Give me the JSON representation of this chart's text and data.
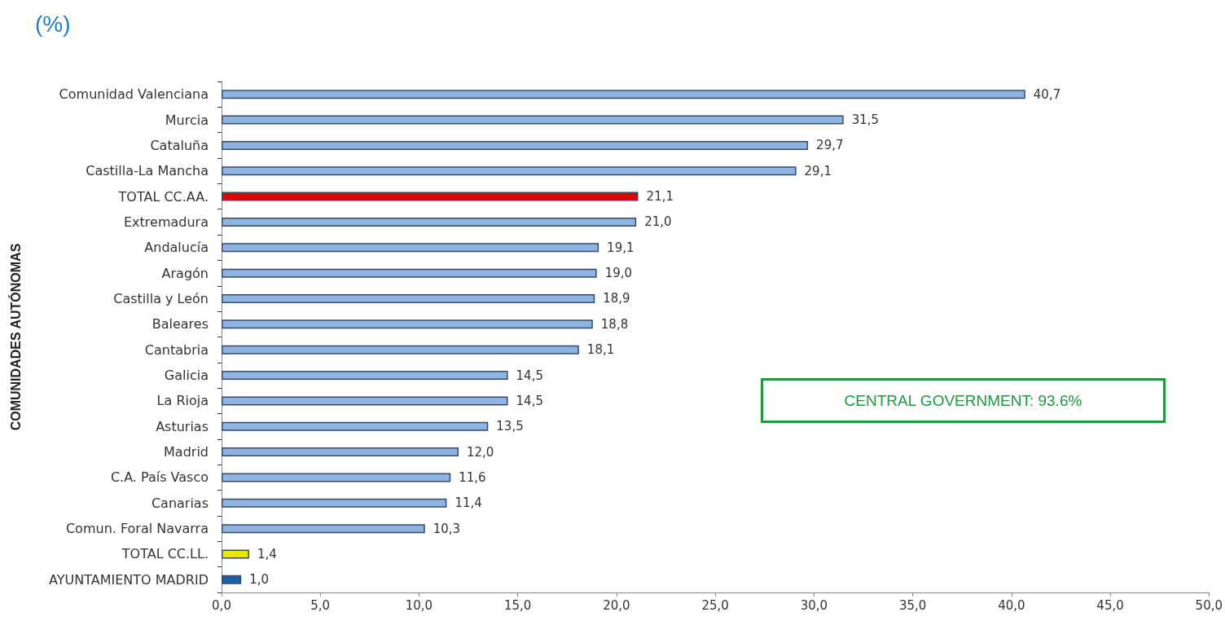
{
  "chart_data": {
    "type": "bar",
    "orientation": "horizontal",
    "title": "(%)",
    "ylabel": "COMUNIDADES AUTÓNOMAS",
    "categories": [
      "Comunidad Valenciana",
      "Murcia",
      "Cataluña",
      "Castilla-La Mancha",
      "TOTAL CC.AA.",
      "Extremadura",
      "Andalucía",
      "Aragón",
      "Castilla y León",
      "Baleares",
      "Cantabria",
      "Galicia",
      "La Rioja",
      "Asturias",
      "Madrid",
      "C.A. País Vasco",
      "Canarias",
      "Comun. Foral Navarra",
      "TOTAL CC.LL.",
      "AYUNTAMIENTO MADRID"
    ],
    "values": [
      40.7,
      31.5,
      29.7,
      29.1,
      21.1,
      21.0,
      19.1,
      19.0,
      18.9,
      18.8,
      18.1,
      14.5,
      14.5,
      13.5,
      12.0,
      11.6,
      11.4,
      10.3,
      1.4,
      1.0
    ],
    "value_labels": [
      "40,7",
      "31,5",
      "29,7",
      "29,1",
      "21,1",
      "21,0",
      "19,1",
      "19,0",
      "18,9",
      "18,8",
      "18,1",
      "14,5",
      "14,5",
      "13,5",
      "12,0",
      "11,6",
      "11,4",
      "10,3",
      "1,4",
      "1,0"
    ],
    "colors": [
      "#8db4e2",
      "#8db4e2",
      "#8db4e2",
      "#8db4e2",
      "#e00000",
      "#8db4e2",
      "#8db4e2",
      "#8db4e2",
      "#8db4e2",
      "#8db4e2",
      "#8db4e2",
      "#8db4e2",
      "#8db4e2",
      "#8db4e2",
      "#8db4e2",
      "#8db4e2",
      "#8db4e2",
      "#8db4e2",
      "#e8e800",
      "#1f5fa8"
    ],
    "xlim": [
      0,
      50
    ],
    "xticks": [
      {
        "value": 0,
        "label": "0,0"
      },
      {
        "value": 5,
        "label": "5,0"
      },
      {
        "value": 10,
        "label": "10,0"
      },
      {
        "value": 15,
        "label": "15,0"
      },
      {
        "value": 20,
        "label": "20,0"
      },
      {
        "value": 25,
        "label": "25,0"
      },
      {
        "value": 30,
        "label": "30,0"
      },
      {
        "value": 35,
        "label": "35,0"
      },
      {
        "value": 40,
        "label": "40,0"
      },
      {
        "value": 45,
        "label": "45,0"
      },
      {
        "value": 50,
        "label": "50,0"
      }
    ],
    "grid": false,
    "annotations": [
      "CENTRAL GOVERNMENT: 93.6%"
    ]
  }
}
